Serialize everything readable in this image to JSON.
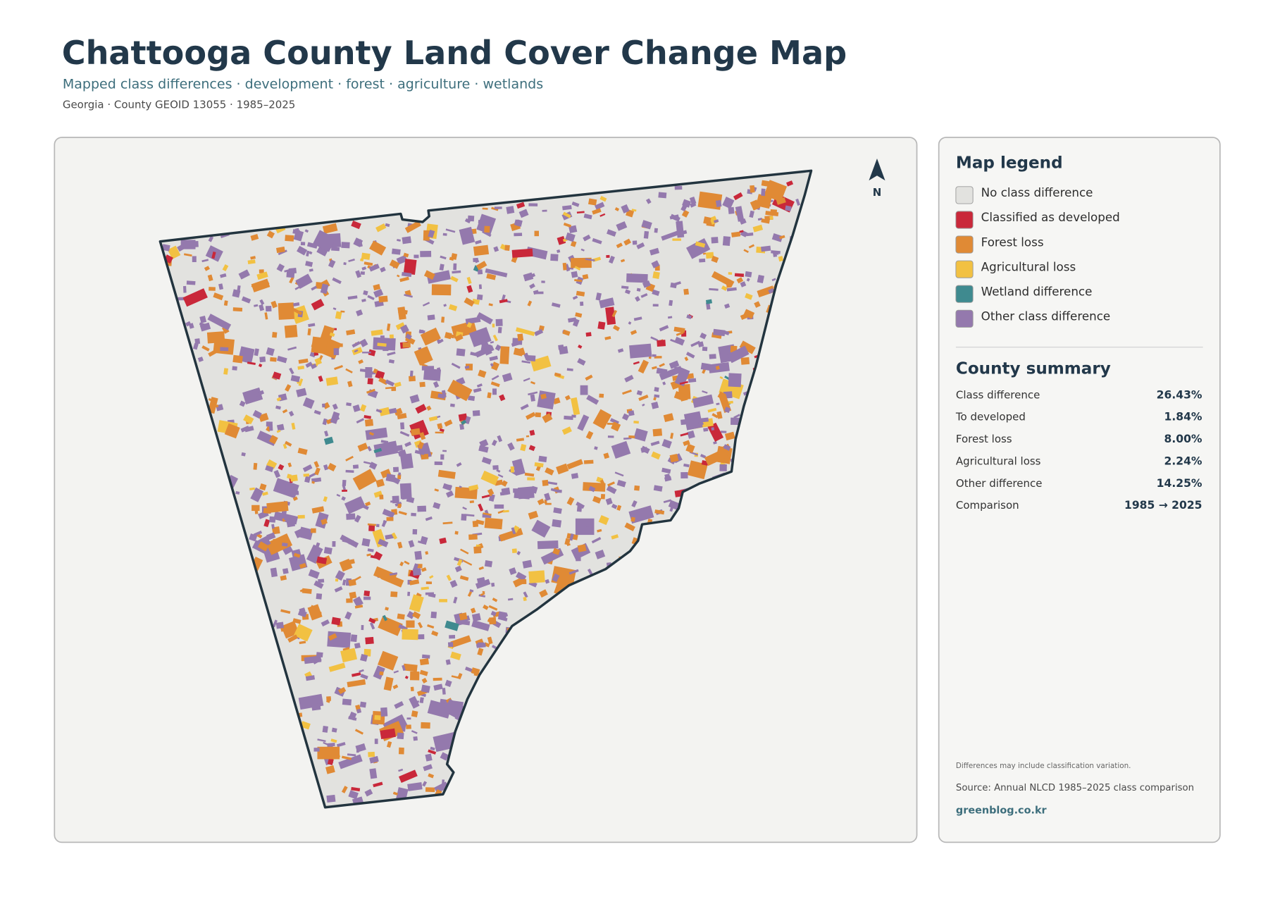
{
  "header": {
    "title": "Chattooga County Land Cover Change Map",
    "subtitle": "Mapped class differences · development · forest · agriculture · wetlands",
    "meta": "Georgia · County GEOID 13055 · 1985–2025"
  },
  "map": {
    "north_label": "N"
  },
  "legend": {
    "title": "Map legend",
    "items": [
      {
        "label": "No class difference",
        "color": "#e2e2df"
      },
      {
        "label": "Classified as developed",
        "color": "#c9283a"
      },
      {
        "label": "Forest loss",
        "color": "#e08a35"
      },
      {
        "label": "Agricultural loss",
        "color": "#f2c142"
      },
      {
        "label": "Wetland difference",
        "color": "#3f8a8f"
      },
      {
        "label": "Other class difference",
        "color": "#9479ad"
      }
    ]
  },
  "summary": {
    "title": "County summary",
    "rows": [
      [
        "Class difference",
        "26.43%"
      ],
      [
        "To developed",
        "1.84%"
      ],
      [
        "Forest loss",
        "8.00%"
      ],
      [
        "Agricultural loss",
        "2.24%"
      ],
      [
        "Other difference",
        "14.25%"
      ],
      [
        "Comparison",
        "1985 → 2025"
      ]
    ]
  },
  "footer": {
    "note": "Differences may include classification variation.",
    "source": "Source: Annual NLCD 1985–2025 class comparison",
    "site": "greenblog.co.kr"
  }
}
